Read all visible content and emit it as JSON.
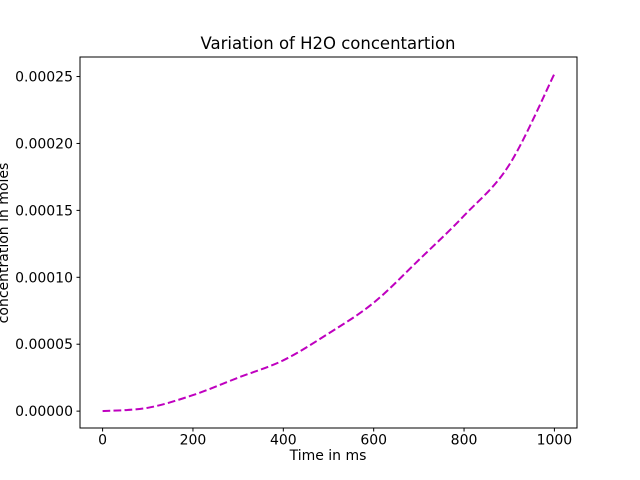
{
  "window": {
    "background": "#ffffff",
    "text_color": "#000000"
  },
  "chart_data": {
    "type": "line",
    "title": "Variation of H2O concentartion",
    "xlabel": "Time in ms",
    "ylabel": "concentration in moles",
    "x": [
      0,
      100,
      200,
      300,
      400,
      500,
      600,
      700,
      800,
      900,
      1000
    ],
    "y": [
      0.0,
      2.5e-06,
      1.2e-05,
      2.5e-05,
      3.8e-05,
      5.8e-05,
      8.1e-05,
      0.000113,
      0.000146,
      0.000184,
      0.000252
    ],
    "xlim": [
      -50,
      1050
    ],
    "ylim": [
      -1.26e-05,
      0.0002646
    ],
    "xticks": {
      "values": [
        0,
        200,
        400,
        600,
        800,
        1000
      ],
      "labels": [
        "0",
        "200",
        "400",
        "600",
        "800",
        "1000"
      ]
    },
    "yticks": {
      "values": [
        0.0,
        5e-05,
        0.0001,
        0.00015,
        0.0002,
        0.00025
      ],
      "labels": [
        "0.00000",
        "0.00005",
        "0.00010",
        "0.00015",
        "0.00020",
        "0.00025"
      ]
    },
    "line": {
      "color": "#BF00BF",
      "style": "dashed",
      "width": 2,
      "dash": "7.7 3.3"
    },
    "grid": false,
    "legend_position": "none",
    "axes_edge_color": "#000000"
  }
}
